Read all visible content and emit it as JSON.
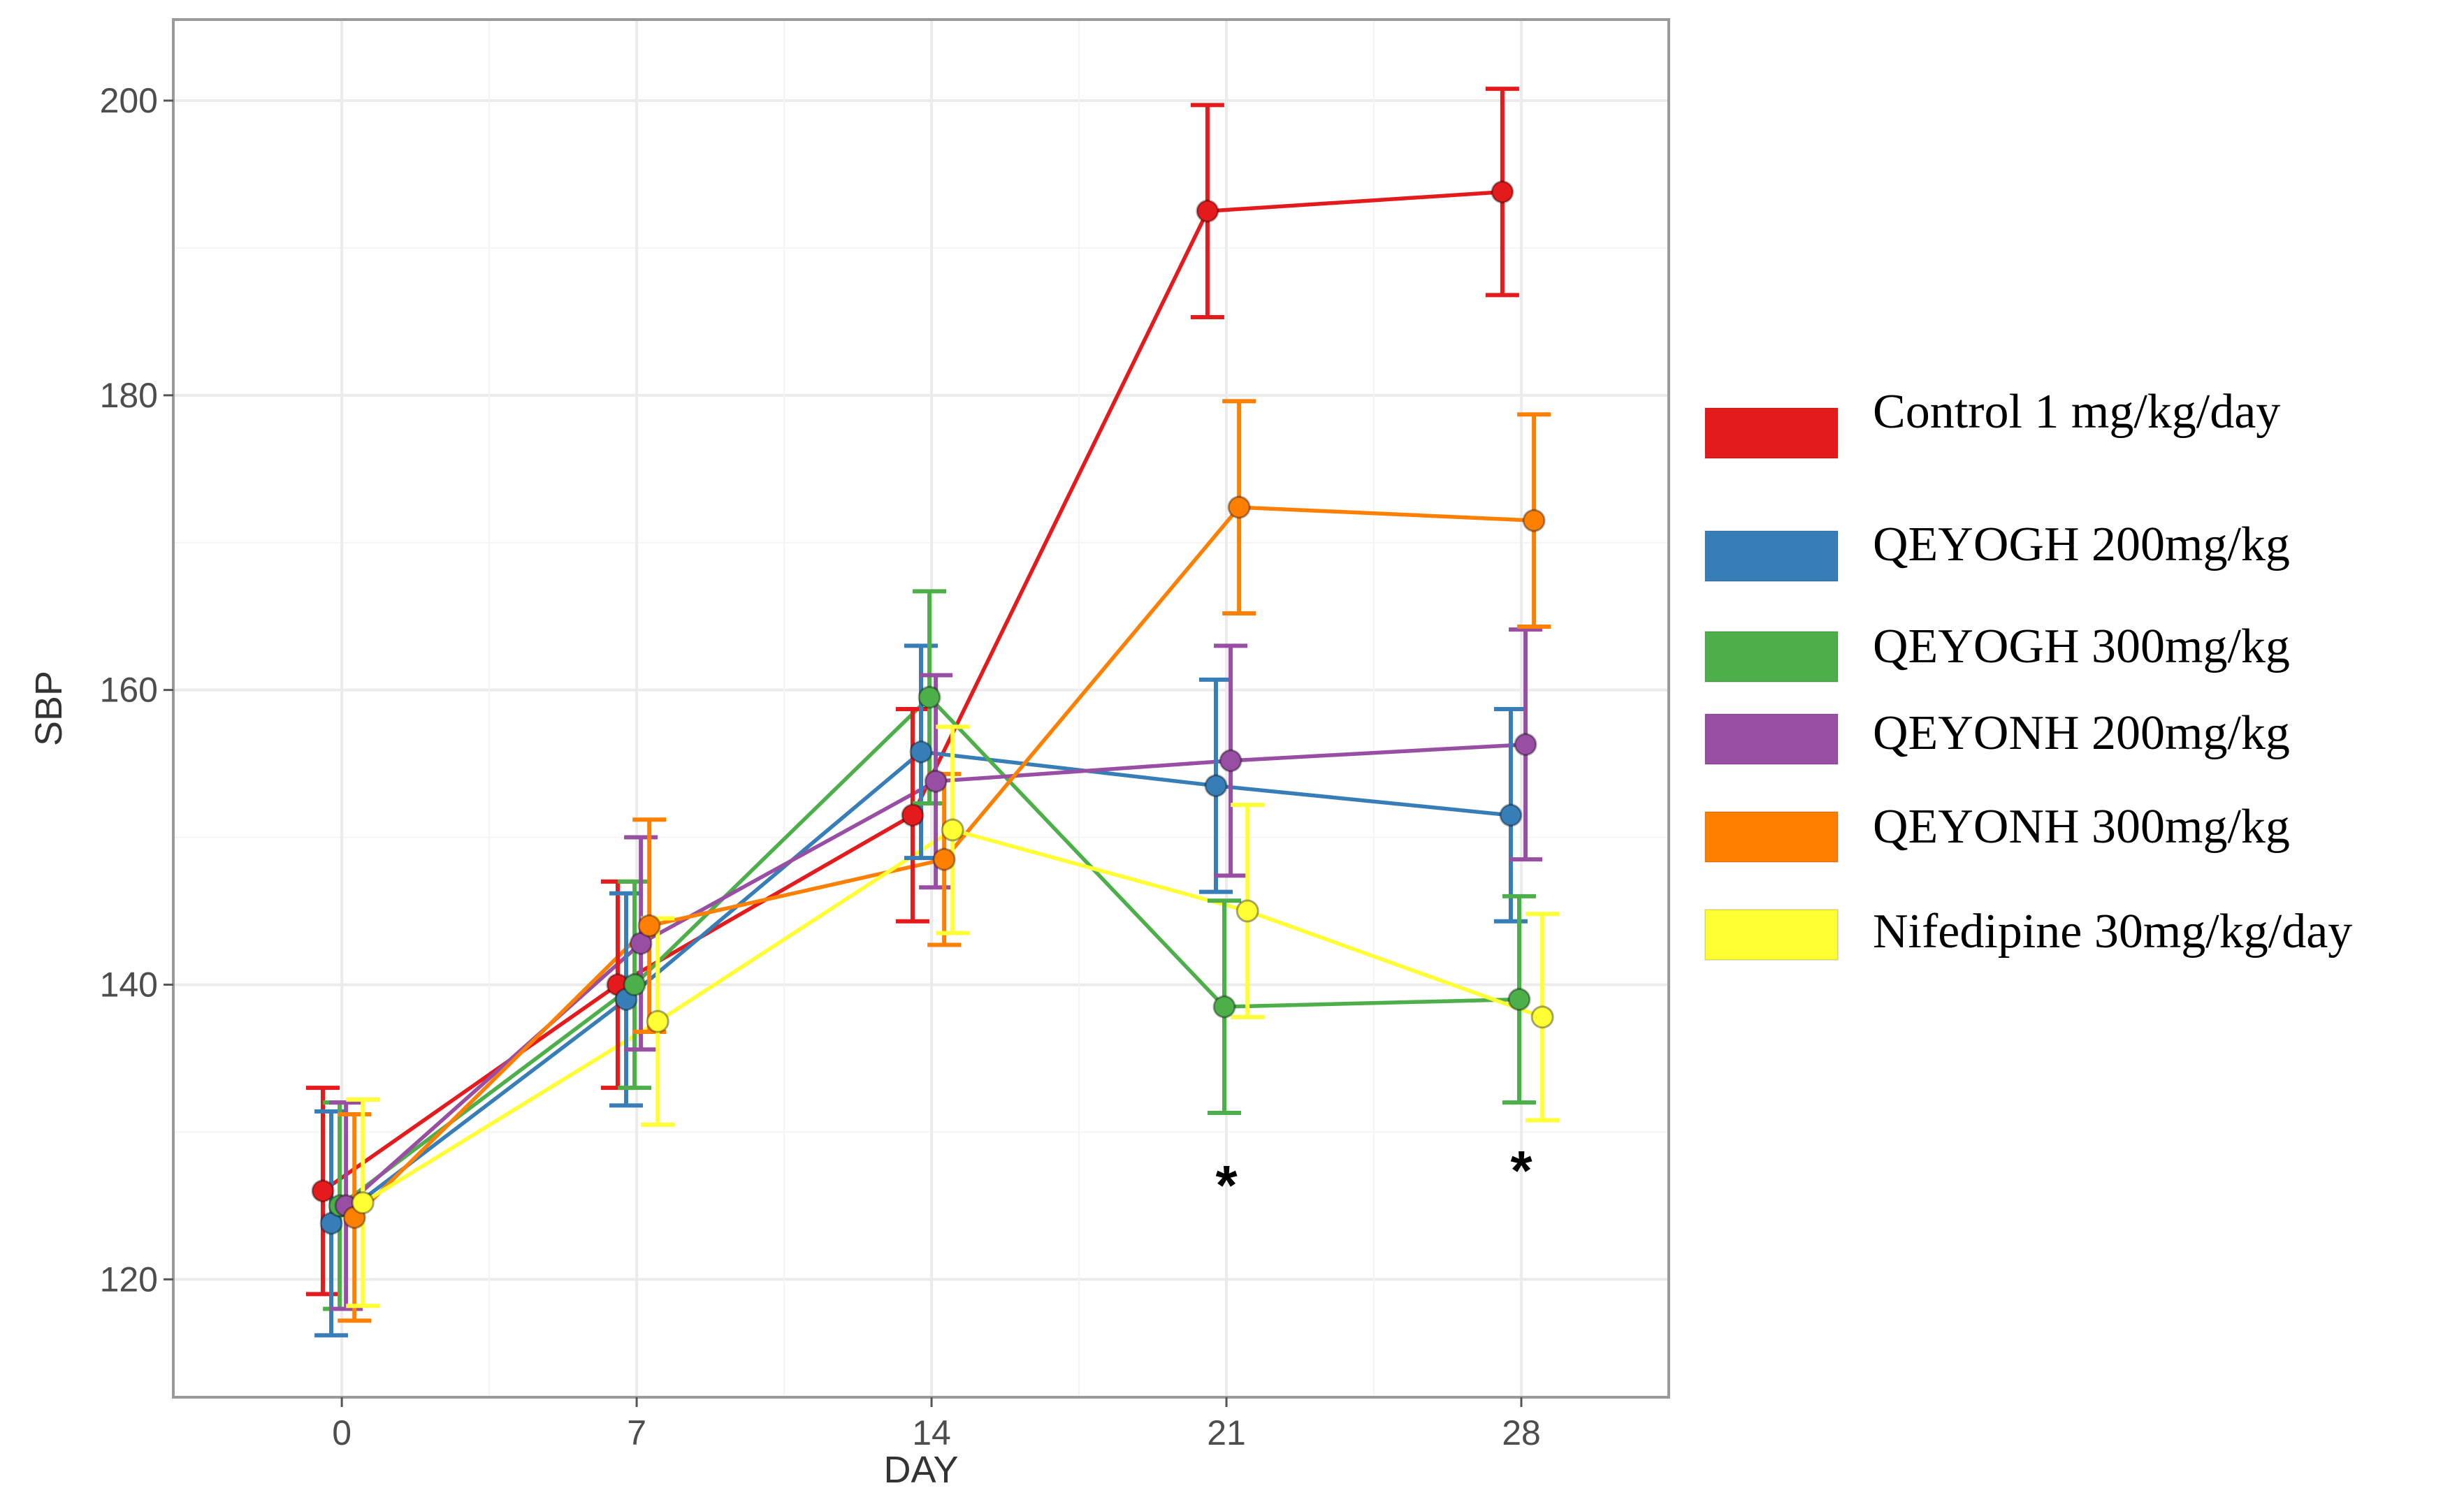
{
  "chart_data": {
    "type": "line",
    "title": "",
    "xlabel": "DAY",
    "ylabel": "SBP",
    "x": [
      0,
      7,
      14,
      21,
      28
    ],
    "xticks": [
      "0",
      "7",
      "14",
      "21",
      "28"
    ],
    "yticks": [
      "120",
      "140",
      "160",
      "180",
      "200"
    ],
    "xlim": [
      -4,
      31.5
    ],
    "ylim": [
      112,
      205.5
    ],
    "grid": true,
    "legend_position": "right",
    "series": [
      {
        "name": "Control 1 mg/kg/day",
        "color": "#e41a1c",
        "offset": -0.45,
        "values": [
          126,
          140,
          151.5,
          192.5,
          193.8
        ],
        "errors": [
          7,
          7,
          7.2,
          7.2,
          7
        ]
      },
      {
        "name": "QEYOGH 200mg/kg",
        "color": "#377eb8",
        "offset": -0.25,
        "values": [
          123.8,
          139,
          155.8,
          153.5,
          151.5
        ],
        "errors": [
          7.6,
          7.2,
          7.2,
          7.2,
          7.2
        ]
      },
      {
        "name": "QEYOGH 300mg/kg",
        "color": "#4daf4a",
        "offset": -0.05,
        "values": [
          125,
          140,
          159.5,
          138.5,
          139
        ],
        "errors": [
          7,
          7,
          7.2,
          7.2,
          7
        ]
      },
      {
        "name": "QEYONH 200mg/kg",
        "color": "#984ea3",
        "offset": 0.1,
        "values": [
          125,
          142.8,
          153.8,
          155.2,
          156.3
        ],
        "errors": [
          7,
          7.2,
          7.2,
          7.8,
          7.8
        ]
      },
      {
        "name": "QEYONH 300mg/kg",
        "color": "#ff7f00",
        "offset": 0.3,
        "values": [
          124.2,
          144,
          148.5,
          172.4,
          171.5
        ],
        "errors": [
          7,
          7.2,
          5.8,
          7.2,
          7.2
        ]
      },
      {
        "name": "Nifedipine 30mg/kg/day",
        "color": "#ffff33",
        "offset": 0.5,
        "values": [
          125.2,
          137.5,
          150.5,
          145,
          137.8
        ],
        "errors": [
          7,
          7,
          7,
          7.2,
          7
        ]
      }
    ],
    "annotations": [
      {
        "x": 21,
        "y": 126.5,
        "text": "*"
      },
      {
        "x": 28,
        "y": 127.5,
        "text": "*"
      }
    ]
  }
}
